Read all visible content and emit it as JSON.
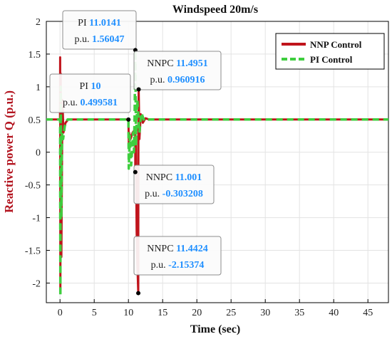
{
  "colors": {
    "nnp": "#c0141c",
    "pi": "#3fce3f",
    "ylabel": "#b3141f",
    "datatip_value": "#1f8fff",
    "grid": "#e3e3e3",
    "axes": "#000000"
  },
  "chart_data": {
    "type": "line",
    "title": "Windspeed 20m/s",
    "xlabel": "Time (sec)",
    "ylabel": "Reactive power Q (p.u.)",
    "xlim": [
      -2,
      48
    ],
    "ylim": [
      -2.3,
      2
    ],
    "xticks": [
      0,
      5,
      10,
      15,
      20,
      25,
      30,
      35,
      40,
      45
    ],
    "yticks": [
      -2,
      -1.5,
      -1,
      -0.5,
      0,
      0.5,
      1,
      1.5,
      2
    ],
    "xtick_labels": [
      "0",
      "5",
      "10",
      "15",
      "20",
      "25",
      "30",
      "35",
      "40",
      "45"
    ],
    "ytick_labels": [
      "-2",
      "-1.5",
      "-1",
      "-0.5",
      "0",
      "0.5",
      "1",
      "1.5",
      "2"
    ],
    "grid": true,
    "legend_position": "top-right",
    "series": [
      {
        "name": "NNP Control",
        "style": "solid",
        "x": [
          -2,
          0,
          0.02,
          0.05,
          0.1,
          0.2,
          0.35,
          0.5,
          0.8,
          1.2,
          2,
          10,
          10.05,
          10.1,
          10.3,
          10.6,
          11.0,
          11.001,
          11.1,
          11.2,
          11.3,
          11.4424,
          11.46,
          11.4951,
          11.6,
          11.8,
          12.1,
          12.5,
          13,
          48
        ],
        "values": [
          0.5,
          0.5,
          1.45,
          -2.15,
          1.2,
          -1.6,
          0.8,
          0.3,
          0.45,
          0.5,
          0.5,
          0.5,
          0.15,
          0.3,
          0.2,
          0.3,
          0.35,
          -0.303208,
          0.1,
          -1.2,
          -1.7,
          -2.15374,
          0.3,
          0.960916,
          0.2,
          0.58,
          0.45,
          0.52,
          0.5,
          0.5
        ]
      },
      {
        "name": "PI Control",
        "style": "dashed",
        "x": [
          -2,
          0,
          0.02,
          0.05,
          0.1,
          0.2,
          0.3,
          0.45,
          0.7,
          1.1,
          2,
          10,
          10.05,
          10.2,
          10.4,
          10.7,
          10.8,
          10.9,
          11.0141,
          11.1,
          11.3,
          11.6,
          11.9,
          12.3,
          13,
          48
        ],
        "values": [
          0.5,
          0.5,
          0.499581,
          -2.2,
          1.0,
          -1.0,
          0.3,
          0.2,
          0.4,
          0.5,
          0.5,
          0.5,
          -0.25,
          0.25,
          -0.2,
          0.3,
          0.0,
          0.5,
          1.56047,
          0.1,
          0.8,
          0.3,
          0.6,
          0.48,
          0.5,
          0.5
        ]
      }
    ],
    "datatips": [
      {
        "series": "PI Control",
        "key_x": "PI",
        "x_text": "11.0141",
        "key_y": "p.u.",
        "y_text": "1.56047",
        "x": 11.0141,
        "y": 1.56047
      },
      {
        "series": "NNP Control",
        "key_x": "NNPC",
        "x_text": "11.4951",
        "key_y": "p.u.",
        "y_text": "0.960916",
        "x": 11.4951,
        "y": 0.960916
      },
      {
        "series": "PI Control",
        "key_x": "PI",
        "x_text": "10",
        "key_y": "p.u.",
        "y_text": "0.499581",
        "x": 10,
        "y": 0.499581
      },
      {
        "series": "NNP Control",
        "key_x": "NNPC",
        "x_text": "11.001",
        "key_y": "p.u.",
        "y_text": "-0.303208",
        "x": 11.001,
        "y": -0.303208
      },
      {
        "series": "NNP Control",
        "key_x": "NNPC",
        "x_text": "11.4424",
        "key_y": "p.u.",
        "y_text": "-2.15374",
        "x": 11.4424,
        "y": -2.15374
      }
    ]
  }
}
